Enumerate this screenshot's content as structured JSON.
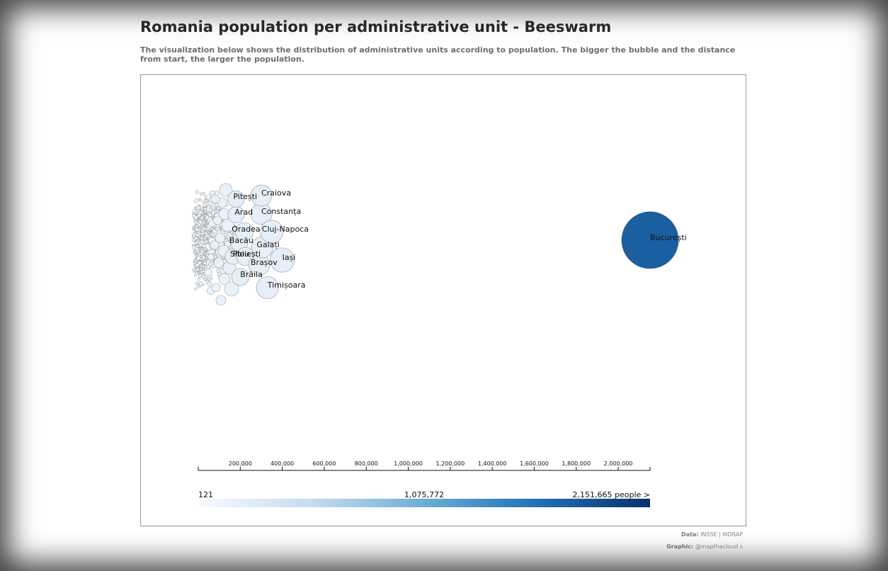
{
  "page": {
    "title": "Romania population per administrative unit - Beeswarm",
    "subtitle": "The visualization below shows the distribution of administrative units according to population. The bigger the bubble and the distance from start, the larger the population."
  },
  "credits": {
    "data_label": "Data:",
    "data_value": "INSSE | MDRAP",
    "graphic_label": "Graphic:",
    "graphic_value": "@mapthecloud s"
  },
  "chart_data": {
    "type": "scatter",
    "xlim": [
      0,
      2151665
    ],
    "x_ticks": [
      200000,
      400000,
      600000,
      800000,
      1000000,
      1200000,
      1400000,
      1600000,
      1800000,
      2000000
    ],
    "x_tick_labels": [
      "200,000",
      "400,000",
      "600,000",
      "800,000",
      "1,000,000",
      "1,200,000",
      "1,400,000",
      "1,600,000",
      "1,800,000",
      "2,000,000"
    ],
    "labeled_units": [
      {
        "name": "București",
        "population": 2151665
      },
      {
        "name": "Cluj-Napoca",
        "population": 350000
      },
      {
        "name": "Timișoara",
        "population": 330000
      },
      {
        "name": "Iași",
        "population": 400000
      },
      {
        "name": "Constanța",
        "population": 300000
      },
      {
        "name": "Craiova",
        "population": 300000
      },
      {
        "name": "Brașov",
        "population": 290000
      },
      {
        "name": "Galați",
        "population": 305000
      },
      {
        "name": "Ploiești",
        "population": 225000
      },
      {
        "name": "Oradea",
        "population": 220000
      },
      {
        "name": "Brăila",
        "population": 200000
      },
      {
        "name": "Arad",
        "population": 180000
      },
      {
        "name": "Pitești",
        "population": 180000
      },
      {
        "name": "Sibiu",
        "population": 165000
      },
      {
        "name": "Bacău",
        "population": 195000
      }
    ],
    "legend": {
      "min_label": "121",
      "mid_label": "1,075,772",
      "max_label": "2,151,665 people >",
      "color_low": "#f7fbff",
      "color_high": "#08306b"
    }
  }
}
